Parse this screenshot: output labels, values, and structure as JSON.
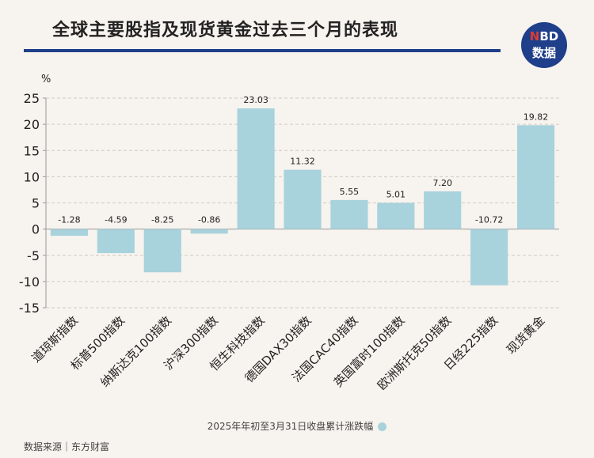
{
  "title": "全球主要股指及现货黄金过去三个月的表现",
  "logo": {
    "top_n": "N",
    "top_rest": "BD",
    "bottom": "数据"
  },
  "colors": {
    "bar": "#a8d2dc",
    "title_rule": "#1f3f8a",
    "logo_bg": "#1f3f8a",
    "logo_accent": "#e23a2e"
  },
  "source": "数据来源｜东方财富",
  "chart_data": {
    "type": "bar",
    "ylabel": "%",
    "ylim": [
      -15,
      25
    ],
    "yticks": [
      25,
      20,
      15,
      10,
      5,
      0,
      -5,
      -10,
      -15
    ],
    "grid": true,
    "legend_position": "bottom",
    "categories": [
      "道琼斯指数",
      "标普500指数",
      "纳斯达克100指数",
      "沪深300指数",
      "恒生科技指数",
      "德国DAX30指数",
      "法国CAC40指数",
      "英国富时100指数",
      "欧洲斯托克50指数",
      "日经225指数",
      "现货黄金"
    ],
    "series": [
      {
        "name": "2025年年初至3月31日收盘累计涨跌幅",
        "values": [
          -1.28,
          -4.59,
          -8.25,
          -0.86,
          23.03,
          11.32,
          5.55,
          5.01,
          7.2,
          -10.72,
          19.82
        ],
        "labels": [
          "-1.28",
          "-4.59",
          "-8.25",
          "-0.86",
          "23.03",
          "11.32",
          "5.55",
          "5.01",
          "7.20",
          "-10.72",
          "19.82"
        ]
      }
    ]
  }
}
